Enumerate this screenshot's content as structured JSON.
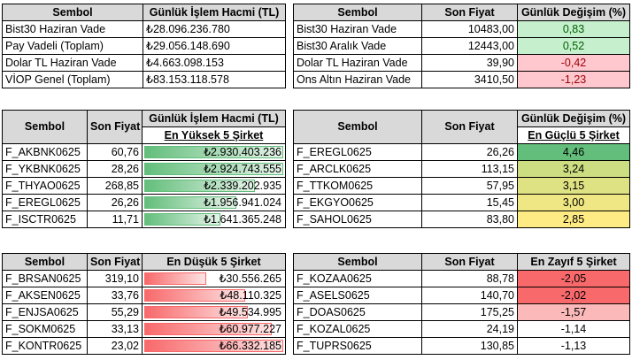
{
  "t1": {
    "headers": [
      "Sembol",
      "Günlük İşlem Hacmi (TL)"
    ],
    "rows": [
      {
        "name": "Bist30 Haziran Vade",
        "value": "₺28.096.236.780"
      },
      {
        "name": "Pay Vadeli (Toplam)",
        "value": "₺29.056.148.690"
      },
      {
        "name": "Dolar TL Haziran Vade",
        "value": "₺4.663.098.153"
      },
      {
        "name": "VİOP Genel (Toplam)",
        "value": "₺83.153.118.578"
      }
    ]
  },
  "t2": {
    "headers": [
      "Sembol",
      "Son Fiyat",
      "Günlük Değişim (%)"
    ],
    "rows": [
      {
        "name": "Bist30 Haziran Vade",
        "price": "10483,00",
        "change": "0,83",
        "color": "#c6efce",
        "text": "#006100"
      },
      {
        "name": "Bist30 Aralık Vade",
        "price": "12443,00",
        "change": "0,52",
        "color": "#c6efce",
        "text": "#006100"
      },
      {
        "name": "Dolar TL Haziran Vade",
        "price": "39,90",
        "change": "-0,42",
        "color": "#ffc7ce",
        "text": "#9c0006"
      },
      {
        "name": "Ons Altın Haziran Vade",
        "price": "3410,50",
        "change": "-1,23",
        "color": "#ffc7ce",
        "text": "#9c0006"
      }
    ]
  },
  "t3": {
    "headers": [
      "Sembol",
      "Son Fiyat",
      "Günlük İşlem Hacmi (TL)"
    ],
    "subheader": "En Yüksek 5 Şirket",
    "rows": [
      {
        "name": "F_AKBNK0625",
        "price": "60,76",
        "volume": "₺2.930.403.236",
        "ratio": 1.0
      },
      {
        "name": "F_YKBNK0625",
        "price": "28,26",
        "volume": "₺2.924.743.555",
        "ratio": 0.998
      },
      {
        "name": "F_THYAO0625",
        "price": "268,85",
        "volume": "₺2.339.202.935",
        "ratio": 0.8
      },
      {
        "name": "F_EREGL0625",
        "price": "26,26",
        "volume": "₺1.956.941.024",
        "ratio": 0.67
      },
      {
        "name": "F_ISCTR0625",
        "price": "11,71",
        "volume": "₺1.641.365.248",
        "ratio": 0.56
      }
    ]
  },
  "t4": {
    "headers": [
      "Sembol",
      "Son Fiyat",
      "Günlük Değişim (%)"
    ],
    "subheader": "En Güçlü 5 Şirket",
    "rows": [
      {
        "name": "F_EREGL0625",
        "price": "26,26",
        "change": "4,46",
        "color": "#63be7b"
      },
      {
        "name": "F_ARCLK0625",
        "price": "113,15",
        "change": "3,24",
        "color": "#cddd82"
      },
      {
        "name": "F_TTKOM0625",
        "price": "57,95",
        "change": "3,15",
        "color": "#dfe283"
      },
      {
        "name": "F_EKGYO0625",
        "price": "15,45",
        "change": "3,00",
        "color": "#efe784"
      },
      {
        "name": "F_SAHOL0625",
        "price": "83,80",
        "change": "2,85",
        "color": "#ffeb84"
      }
    ]
  },
  "t5": {
    "headers": [
      "Sembol",
      "Son Fiyat",
      "En Düşük 5 Şirket"
    ],
    "rows": [
      {
        "name": "F_BRSAN0625",
        "price": "319,10",
        "volume": "₺30.556.265",
        "ratio": 0.46
      },
      {
        "name": "F_AKSEN0625",
        "price": "33,76",
        "volume": "₺48.110.325",
        "ratio": 0.73
      },
      {
        "name": "F_ENJSA0625",
        "price": "55,29",
        "volume": "₺49.534.995",
        "ratio": 0.75
      },
      {
        "name": "F_SOKM0625",
        "price": "33,13",
        "volume": "₺60.977.227",
        "ratio": 0.92
      },
      {
        "name": "F_KONTR0625",
        "price": "23,02",
        "volume": "₺66.332.185",
        "ratio": 1.0
      }
    ]
  },
  "t6": {
    "headers": [
      "Sembol",
      "Son Fiyat",
      "En Zayıf 5 Şirket"
    ],
    "rows": [
      {
        "name": "F_KOZAA0625",
        "price": "88,78",
        "change": "-2,05",
        "color": "#f8696b"
      },
      {
        "name": "F_ASELS0625",
        "price": "140,70",
        "change": "-2,02",
        "color": "#f8696b"
      },
      {
        "name": "F_DOAS0625",
        "price": "175,25",
        "change": "-1,57",
        "color": "#fcb9ba"
      },
      {
        "name": "F_KOZAL0625",
        "price": "24,19",
        "change": "-1,14",
        "color": "#ffffff"
      },
      {
        "name": "F_TUPRS0625",
        "price": "130,85",
        "change": "-1,13",
        "color": "#ffffff"
      }
    ]
  }
}
